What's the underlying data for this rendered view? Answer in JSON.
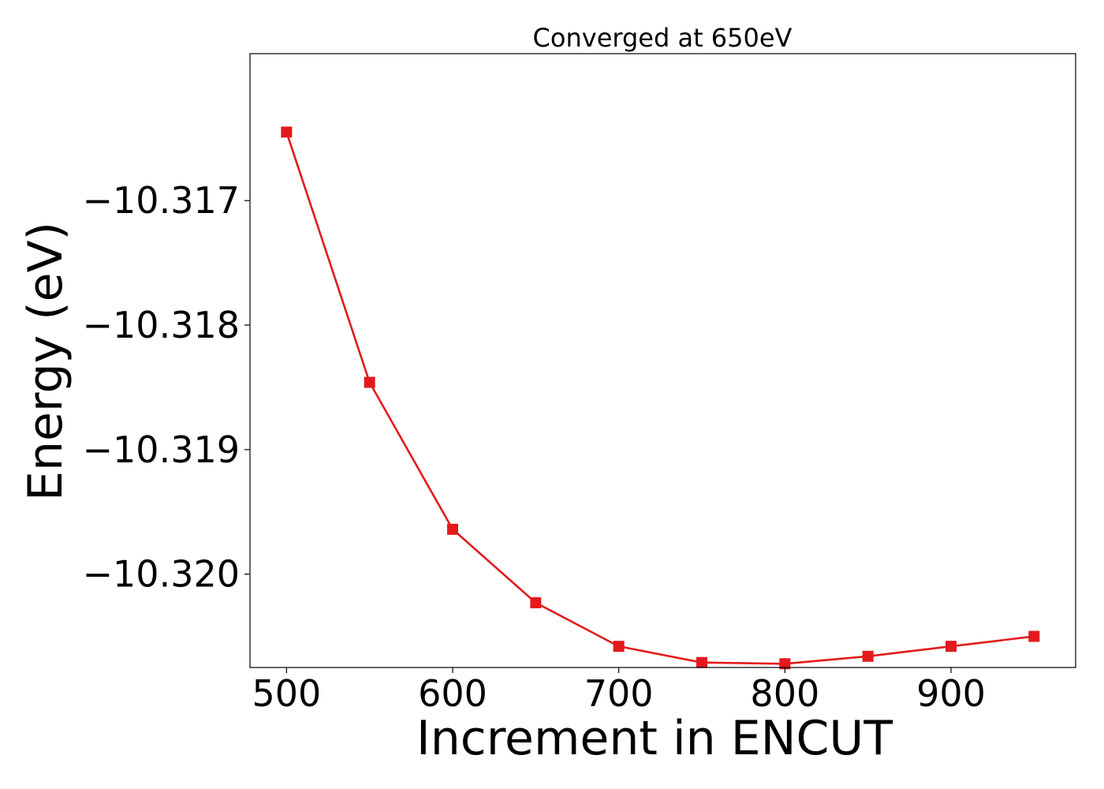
{
  "chart_data": {
    "type": "line",
    "title": "Converged at 650eV",
    "xlabel": "Increment in ENCUT",
    "ylabel": "Energy (eV)",
    "xlim": [
      478,
      975
    ],
    "ylim": [
      -10.32075,
      -10.31582
    ],
    "x_ticks": [
      500,
      600,
      700,
      800,
      900
    ],
    "x_tick_labels": [
      "500",
      "600",
      "700",
      "800",
      "900"
    ],
    "y_ticks": [
      -10.317,
      -10.318,
      -10.319,
      -10.32
    ],
    "y_tick_labels": [
      "−10.317",
      "−10.318",
      "−10.319",
      "−10.320"
    ],
    "grid": false,
    "series": [
      {
        "color": "#e31a1c",
        "marker": "square",
        "x": [
          500,
          550,
          600,
          650,
          700,
          750,
          800,
          850,
          900,
          950
        ],
        "y": [
          -10.31645,
          -10.31846,
          -10.31964,
          -10.32023,
          -10.32058,
          -10.32071,
          -10.32072,
          -10.32066,
          -10.32058,
          -10.3205
        ]
      }
    ]
  }
}
